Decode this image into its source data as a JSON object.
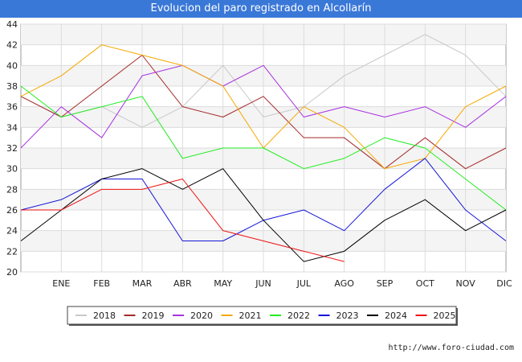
{
  "title": "Evolucion del paro registrado en Alcollarín",
  "footer": "http://www.foro-ciudad.com",
  "chart_data": {
    "type": "line",
    "title": "Evolucion del paro registrado en Alcollarín",
    "categories": [
      "DIC",
      "ENE",
      "FEB",
      "MAR",
      "ABR",
      "MAY",
      "JUN",
      "JUL",
      "AGO",
      "SEP",
      "OCT",
      "NOV",
      "DIC"
    ],
    "x_tick_labels": [
      "",
      "ENE",
      "FEB",
      "MAR",
      "ABR",
      "MAY",
      "JUN",
      "JUL",
      "AGO",
      "SEP",
      "OCT",
      "NOV",
      "DIC"
    ],
    "ylim": [
      20,
      44
    ],
    "y_ticks": [
      20,
      22,
      24,
      26,
      28,
      30,
      32,
      34,
      36,
      38,
      40,
      42,
      44
    ],
    "grid": true,
    "legend_position": "bottom",
    "series": [
      {
        "name": "2018",
        "color": "#c8c8c8",
        "values": [
          37,
          35,
          36,
          34,
          36,
          40,
          35,
          36,
          39,
          41,
          43,
          41,
          37
        ]
      },
      {
        "name": "2019",
        "color": "#a52a2a",
        "values": [
          37,
          35,
          38,
          41,
          36,
          35,
          37,
          33,
          33,
          30,
          33,
          30,
          32
        ]
      },
      {
        "name": "2020",
        "color": "#a832e0",
        "values": [
          32,
          36,
          33,
          39,
          40,
          38,
          40,
          35,
          36,
          35,
          36,
          34,
          37
        ]
      },
      {
        "name": "2021",
        "color": "#f5a800",
        "values": [
          37,
          39,
          42,
          41,
          40,
          38,
          32,
          36,
          34,
          30,
          31,
          36,
          38
        ]
      },
      {
        "name": "2022",
        "color": "#22ee22",
        "values": [
          38,
          35,
          36,
          37,
          31,
          32,
          32,
          30,
          31,
          33,
          32,
          29,
          26
        ]
      },
      {
        "name": "2023",
        "color": "#1515d8",
        "values": [
          26,
          27,
          29,
          29,
          23,
          23,
          25,
          26,
          24,
          28,
          31,
          26,
          23
        ]
      },
      {
        "name": "2024",
        "color": "#000000",
        "values": [
          23,
          26,
          29,
          30,
          28,
          30,
          25,
          21,
          22,
          25,
          27,
          24,
          26
        ]
      },
      {
        "name": "2025",
        "color": "#ee1111",
        "values": [
          26,
          26,
          28,
          28,
          29,
          24,
          23,
          22,
          21,
          null,
          null,
          null,
          null
        ]
      }
    ]
  }
}
